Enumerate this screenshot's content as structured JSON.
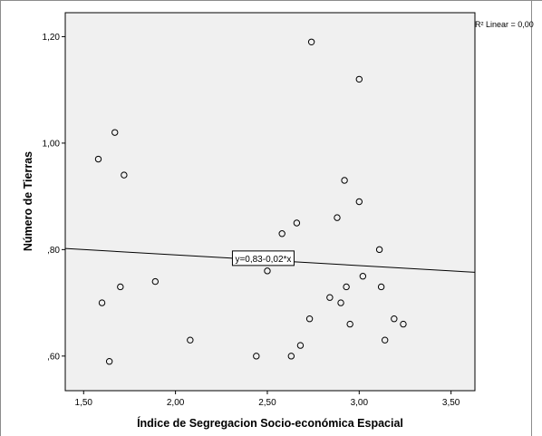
{
  "chart_data": {
    "type": "scatter",
    "xlabel": "Índice de Segregacion Socio-económica Espacial",
    "ylabel": "Número de Tierras",
    "xlim": [
      1.4,
      3.63
    ],
    "ylim": [
      0.535,
      1.245
    ],
    "x_ticks": [
      1.5,
      2.0,
      2.5,
      3.0,
      3.5
    ],
    "x_tick_labels": [
      "1,50",
      "2,00",
      "2,50",
      "3,00",
      "3,50"
    ],
    "y_ticks": [
      0.6,
      0.8,
      1.0,
      1.2
    ],
    "y_tick_labels": [
      ",60",
      ",80",
      "1,00",
      "1,20"
    ],
    "grid": false,
    "points": [
      {
        "x": 1.58,
        "y": 0.97
      },
      {
        "x": 1.6,
        "y": 0.7
      },
      {
        "x": 1.64,
        "y": 0.59
      },
      {
        "x": 1.67,
        "y": 1.02
      },
      {
        "x": 1.7,
        "y": 0.73
      },
      {
        "x": 1.72,
        "y": 0.94
      },
      {
        "x": 1.89,
        "y": 0.74
      },
      {
        "x": 2.08,
        "y": 0.63
      },
      {
        "x": 2.44,
        "y": 0.6
      },
      {
        "x": 2.5,
        "y": 0.76
      },
      {
        "x": 2.58,
        "y": 0.83
      },
      {
        "x": 2.63,
        "y": 0.6
      },
      {
        "x": 2.66,
        "y": 0.85
      },
      {
        "x": 2.68,
        "y": 0.62
      },
      {
        "x": 2.73,
        "y": 0.67
      },
      {
        "x": 2.74,
        "y": 1.19
      },
      {
        "x": 2.84,
        "y": 0.71
      },
      {
        "x": 2.88,
        "y": 0.86
      },
      {
        "x": 2.9,
        "y": 0.7
      },
      {
        "x": 2.92,
        "y": 0.93
      },
      {
        "x": 2.93,
        "y": 0.73
      },
      {
        "x": 2.95,
        "y": 0.66
      },
      {
        "x": 3.0,
        "y": 1.12
      },
      {
        "x": 3.0,
        "y": 0.89
      },
      {
        "x": 3.02,
        "y": 0.75
      },
      {
        "x": 3.11,
        "y": 0.8
      },
      {
        "x": 3.12,
        "y": 0.73
      },
      {
        "x": 3.14,
        "y": 0.63
      },
      {
        "x": 3.19,
        "y": 0.67
      },
      {
        "x": 3.24,
        "y": 0.66
      }
    ],
    "fit_line": {
      "intercept": 0.83,
      "slope": -0.02
    },
    "equation_label": "y=0,83-0,02*x",
    "r2_label": "R² Linear = 0,00"
  },
  "colors": {
    "plot_background": "#f0f0f0",
    "marker_stroke": "#000000",
    "fit_line": "#000000",
    "frame": "#8c8c8c"
  }
}
